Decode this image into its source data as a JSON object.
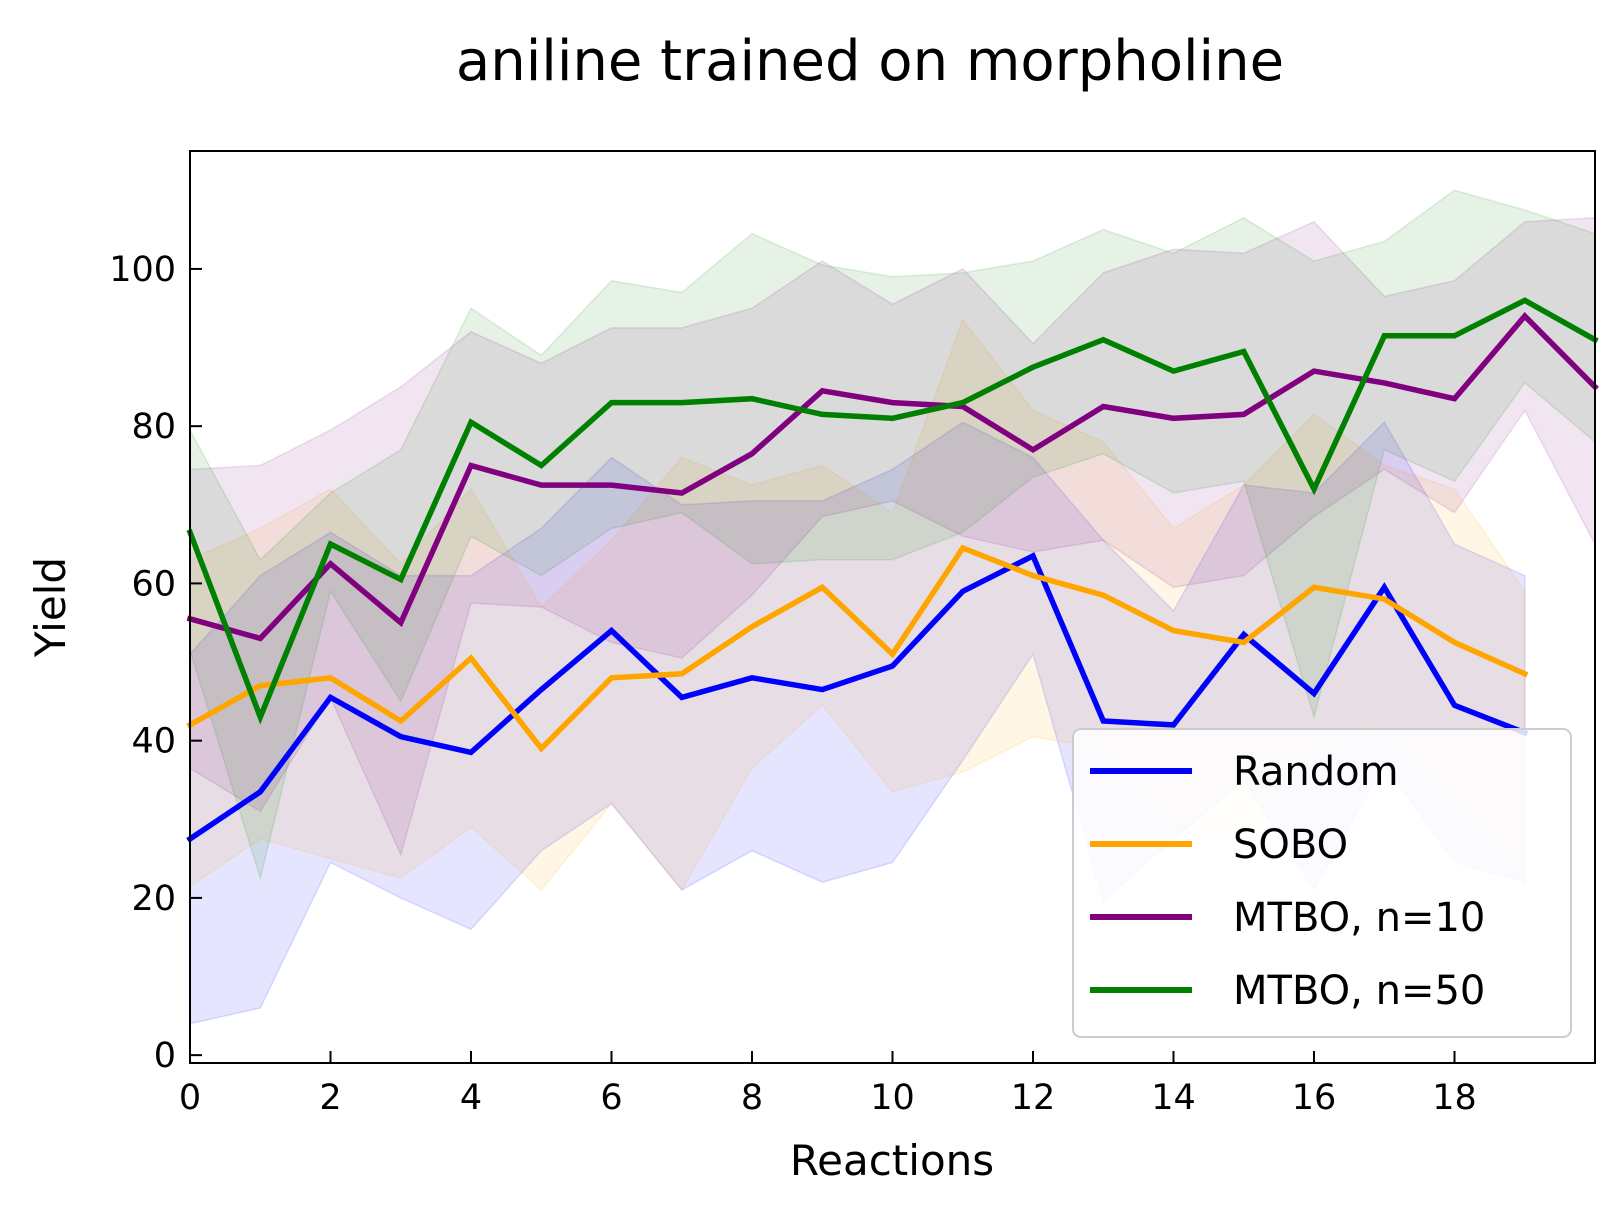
{
  "chart_data": {
    "type": "line",
    "title": "aniline trained on morpholine",
    "xlabel": "Reactions",
    "ylabel": "Yield",
    "xlim": [
      0,
      20
    ],
    "ylim": [
      -1,
      115
    ],
    "xticks": [
      0,
      2,
      4,
      6,
      8,
      10,
      12,
      14,
      16,
      18
    ],
    "yticks": [
      0,
      20,
      40,
      60,
      80,
      100
    ],
    "grid": false,
    "legend_position": "lower-right",
    "series": [
      {
        "name": "Random",
        "color": "#0000ff",
        "x": [
          0,
          1,
          2,
          3,
          4,
          5,
          6,
          7,
          8,
          9,
          10,
          11,
          12,
          13,
          14,
          15,
          16,
          17,
          18,
          19
        ],
        "values": [
          27.5,
          33.5,
          45.5,
          40.5,
          38.5,
          46.5,
          54,
          45.5,
          48,
          46.5,
          49.5,
          59,
          63.5,
          42.5,
          42,
          53.5,
          46,
          59.5,
          44.5,
          41
        ],
        "lower": [
          4,
          6,
          24.5,
          20,
          16,
          26,
          32,
          21,
          26,
          22,
          24.5,
          37.5,
          51,
          19.5,
          27.5,
          35,
          21,
          37,
          24.5,
          22
        ],
        "upper": [
          51,
          61,
          66.5,
          61,
          61,
          67,
          76,
          70,
          70.5,
          70.5,
          74.5,
          80.5,
          76,
          65.5,
          56.5,
          72.5,
          71.5,
          80.5,
          65,
          61
        ]
      },
      {
        "name": "SOBO",
        "color": "#ffa500",
        "x": [
          0,
          1,
          2,
          3,
          4,
          5,
          6,
          7,
          8,
          9,
          10,
          11,
          12,
          13,
          14,
          15,
          16,
          17,
          18,
          19
        ],
        "values": [
          42,
          47,
          48,
          42.5,
          50.5,
          39,
          48,
          48.5,
          54.5,
          59.5,
          51,
          64.5,
          61,
          58.5,
          54,
          52.5,
          59.5,
          58,
          52.5,
          48.5
        ],
        "lower": [
          21.5,
          27.5,
          25,
          22.5,
          29,
          21,
          32,
          21,
          36.5,
          44.5,
          33.5,
          36,
          40.5,
          39,
          28.5,
          27.5,
          38.5,
          41,
          32,
          22
        ],
        "upper": [
          63,
          67,
          72,
          62.5,
          72,
          57,
          65.5,
          76,
          72.5,
          75,
          69,
          93.5,
          82,
          78,
          67,
          72.5,
          81.5,
          75,
          72,
          59
        ]
      },
      {
        "name": "MTBO, n=10",
        "color": "#800080",
        "x": [
          0,
          1,
          2,
          3,
          4,
          5,
          6,
          7,
          8,
          9,
          10,
          11,
          12,
          13,
          14,
          15,
          16,
          17,
          18,
          19,
          20
        ],
        "values": [
          55.5,
          53,
          62.5,
          55,
          75,
          72.5,
          72.5,
          71.5,
          76.5,
          84.5,
          83,
          82.5,
          77,
          82.5,
          81,
          81.5,
          87,
          85.5,
          83.5,
          94,
          85
        ],
        "lower": [
          36.5,
          31,
          45.5,
          25.5,
          57.5,
          57,
          52.5,
          50.5,
          58.5,
          68.5,
          70.5,
          66,
          64,
          65.5,
          59.5,
          61,
          68.5,
          74.5,
          69,
          82,
          65
        ],
        "upper": [
          74.5,
          75,
          79.5,
          85,
          92,
          88,
          92.5,
          92.5,
          95,
          101,
          95.5,
          100,
          90.5,
          99.5,
          102.5,
          102,
          106,
          96.5,
          98.5,
          106,
          106.5
        ]
      },
      {
        "name": "MTBO, n=50",
        "color": "#008000",
        "x": [
          0,
          1,
          2,
          3,
          4,
          5,
          6,
          7,
          8,
          9,
          10,
          11,
          12,
          13,
          14,
          15,
          16,
          17,
          18,
          19,
          20
        ],
        "values": [
          66.5,
          43,
          65,
          60.5,
          80.5,
          75,
          83,
          83,
          83.5,
          81.5,
          81,
          83,
          87.5,
          91,
          87,
          89.5,
          72,
          91.5,
          91.5,
          96,
          91
        ],
        "lower": [
          51.5,
          22.5,
          59,
          45,
          66,
          61,
          67,
          69,
          62.5,
          63,
          63,
          66.5,
          73.5,
          76.5,
          71.5,
          73,
          43,
          77,
          73,
          85.5,
          78
        ],
        "upper": [
          79.5,
          63,
          71.5,
          77,
          95,
          89,
          98.5,
          97,
          104.5,
          100.5,
          99,
          99.5,
          101,
          105,
          102,
          106.5,
          101,
          103.5,
          110,
          107.5,
          104.5
        ]
      }
    ]
  }
}
